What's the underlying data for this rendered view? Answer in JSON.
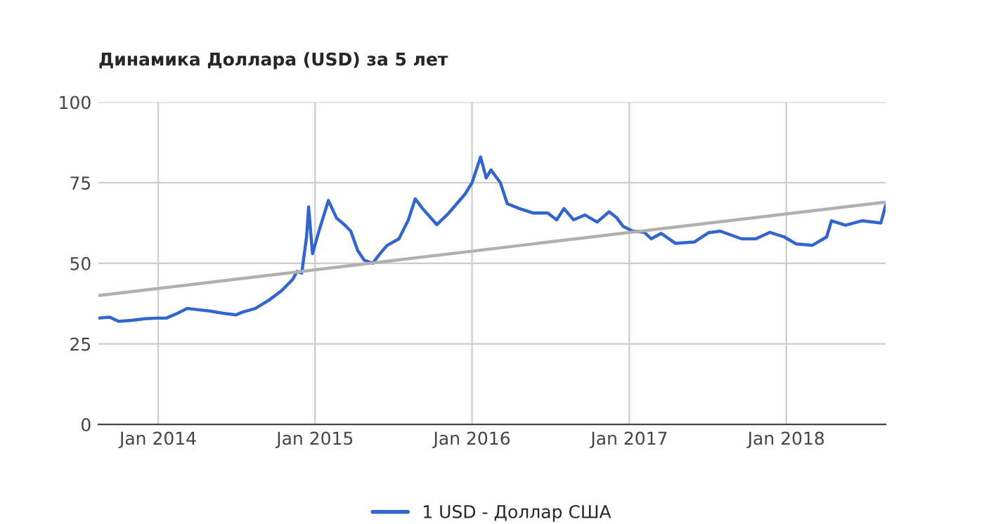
{
  "chart_data": {
    "type": "line",
    "title": "Динамика Доллара (USD) за 5 лет",
    "series": [
      {
        "name": "1 USD - Доллар США",
        "color": "#3366cc",
        "x": [
          "2013-08-15",
          "2013-09-10",
          "2013-10-01",
          "2013-11-01",
          "2013-12-01",
          "2014-01-01",
          "2014-01-20",
          "2014-02-15",
          "2014-03-10",
          "2014-04-10",
          "2014-05-01",
          "2014-06-01",
          "2014-07-01",
          "2014-07-15",
          "2014-08-15",
          "2014-09-15",
          "2014-10-15",
          "2014-11-10",
          "2014-11-20",
          "2014-12-01",
          "2014-12-12",
          "2014-12-17",
          "2014-12-26",
          "2015-01-10",
          "2015-02-01",
          "2015-02-20",
          "2015-03-10",
          "2015-03-25",
          "2015-04-10",
          "2015-04-25",
          "2015-05-15",
          "2015-06-01",
          "2015-06-17",
          "2015-07-15",
          "2015-08-06",
          "2015-08-22",
          "2015-09-08",
          "2015-10-11",
          "2015-11-08",
          "2015-12-16",
          "2016-01-01",
          "2016-01-21",
          "2016-02-03",
          "2016-02-14",
          "2016-03-07",
          "2016-03-23",
          "2016-04-20",
          "2016-05-23",
          "2016-06-25",
          "2016-07-16",
          "2016-08-02",
          "2016-08-24",
          "2016-09-20",
          "2016-10-18",
          "2016-11-15",
          "2016-12-02",
          "2016-12-18",
          "2017-01-09",
          "2017-02-05",
          "2017-02-21",
          "2017-03-16",
          "2017-04-18",
          "2017-06-01",
          "2017-07-04",
          "2017-07-31",
          "2017-09-19",
          "2017-10-22",
          "2017-11-24",
          "2017-12-27",
          "2018-01-24",
          "2018-03-03",
          "2018-04-05",
          "2018-04-16",
          "2018-05-19",
          "2018-06-26",
          "2018-08-09",
          "2018-08-20"
        ],
        "values": [
          33,
          33.3,
          32,
          32.3,
          32.8,
          33,
          33,
          34.5,
          36,
          35.5,
          35.2,
          34.5,
          34,
          34.8,
          36,
          38.5,
          41.5,
          45,
          47.5,
          47,
          58,
          67.5,
          53,
          60,
          69.5,
          64,
          62,
          60,
          54,
          51,
          50,
          53,
          55.5,
          57.6,
          63.5,
          70,
          67,
          62,
          65.6,
          71.5,
          75,
          83,
          76.5,
          79,
          75,
          68.5,
          67,
          65.6,
          65.6,
          63.5,
          67,
          63.5,
          65,
          62.8,
          66,
          64.2,
          61.4,
          60,
          59.6,
          57.6,
          59.3,
          56.2,
          56.6,
          59.5,
          60,
          57.6,
          57.6,
          59.6,
          58.2,
          56,
          55.6,
          58.2,
          63.2,
          61.8,
          63.2,
          62.5,
          68
        ]
      },
      {
        "color": "#b0b0b0",
        "x": [
          "2013-08-15",
          "2018-08-20"
        ],
        "values": [
          40,
          69
        ]
      }
    ],
    "xlim": [
      "2013-08-15",
      "2018-08-20"
    ],
    "xticks": [
      {
        "value": "2014-01-01",
        "label": "Jan 2014"
      },
      {
        "value": "2015-01-01",
        "label": "Jan 2015"
      },
      {
        "value": "2016-01-01",
        "label": "Jan 2016"
      },
      {
        "value": "2017-01-01",
        "label": "Jan 2017"
      },
      {
        "value": "2018-01-01",
        "label": "Jan 2018"
      }
    ],
    "ylim": [
      0,
      100
    ],
    "yticks": [
      0,
      25,
      50,
      75,
      100
    ],
    "grid": true,
    "legend": "bottom",
    "line_style": "solid",
    "marker": "none"
  }
}
